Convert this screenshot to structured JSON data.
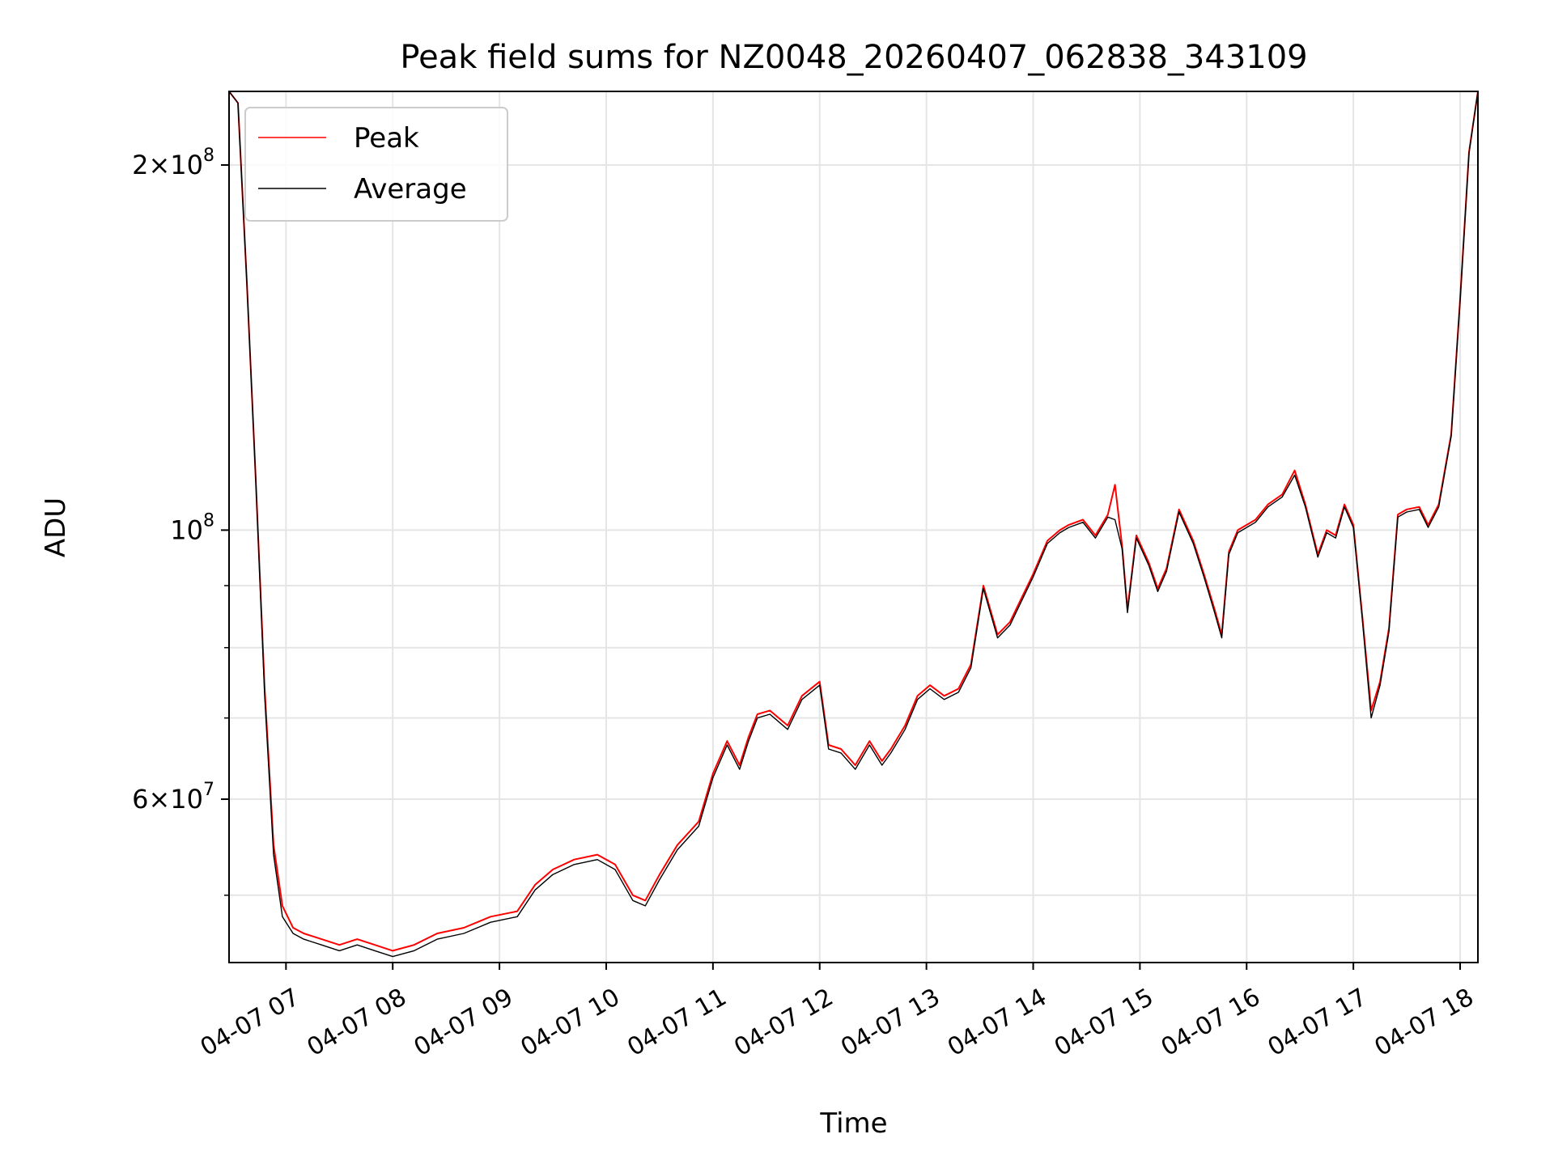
{
  "chart_data": {
    "type": "line",
    "title": "Peak field sums for NZ0048_20260407_062838_343109",
    "xlabel": "Time",
    "ylabel": "ADU",
    "y_scale": "log",
    "ylim": [
      44000000,
      230000000
    ],
    "xlim": [
      "2026-04-07T06:28",
      "2026-04-07T18:10"
    ],
    "x_ticks": [
      {
        "value": "2026-04-07T07:00",
        "label": "04-07 07"
      },
      {
        "value": "2026-04-07T08:00",
        "label": "04-07 08"
      },
      {
        "value": "2026-04-07T09:00",
        "label": "04-07 09"
      },
      {
        "value": "2026-04-07T10:00",
        "label": "04-07 10"
      },
      {
        "value": "2026-04-07T11:00",
        "label": "04-07 11"
      },
      {
        "value": "2026-04-07T12:00",
        "label": "04-07 12"
      },
      {
        "value": "2026-04-07T13:00",
        "label": "04-07 13"
      },
      {
        "value": "2026-04-07T14:00",
        "label": "04-07 14"
      },
      {
        "value": "2026-04-07T15:00",
        "label": "04-07 15"
      },
      {
        "value": "2026-04-07T16:00",
        "label": "04-07 16"
      },
      {
        "value": "2026-04-07T17:00",
        "label": "04-07 17"
      },
      {
        "value": "2026-04-07T18:00",
        "label": "04-07 18"
      }
    ],
    "y_major_ticks": [
      {
        "value": 60000000,
        "mantissa": "6",
        "exponent": "7"
      },
      {
        "value": 100000000,
        "mantissa": "",
        "exponent": "8"
      },
      {
        "value": 200000000,
        "mantissa": "2",
        "exponent": "8"
      }
    ],
    "y_minor_ticks": [
      50000000,
      70000000,
      80000000,
      90000000
    ],
    "grid": true,
    "legend_position": "upper-left",
    "series": [
      {
        "name": "Peak",
        "color": "#ff0000",
        "x": [
          "2026-04-07T06:28",
          "2026-04-07T06:33",
          "2026-04-07T06:38",
          "2026-04-07T06:43",
          "2026-04-07T06:48",
          "2026-04-07T06:53",
          "2026-04-07T06:58",
          "2026-04-07T07:04",
          "2026-04-07T07:10",
          "2026-04-07T07:20",
          "2026-04-07T07:30",
          "2026-04-07T07:40",
          "2026-04-07T07:50",
          "2026-04-07T08:00",
          "2026-04-07T08:12",
          "2026-04-07T08:25",
          "2026-04-07T08:40",
          "2026-04-07T08:55",
          "2026-04-07T09:10",
          "2026-04-07T09:20",
          "2026-04-07T09:30",
          "2026-04-07T09:42",
          "2026-04-07T09:55",
          "2026-04-07T10:05",
          "2026-04-07T10:15",
          "2026-04-07T10:22",
          "2026-04-07T10:30",
          "2026-04-07T10:40",
          "2026-04-07T10:52",
          "2026-04-07T11:00",
          "2026-04-07T11:08",
          "2026-04-07T11:15",
          "2026-04-07T11:20",
          "2026-04-07T11:25",
          "2026-04-07T11:32",
          "2026-04-07T11:42",
          "2026-04-07T11:50",
          "2026-04-07T12:00",
          "2026-04-07T12:05",
          "2026-04-07T12:12",
          "2026-04-07T12:20",
          "2026-04-07T12:28",
          "2026-04-07T12:35",
          "2026-04-07T12:40",
          "2026-04-07T12:48",
          "2026-04-07T12:55",
          "2026-04-07T13:02",
          "2026-04-07T13:10",
          "2026-04-07T13:18",
          "2026-04-07T13:25",
          "2026-04-07T13:32",
          "2026-04-07T13:40",
          "2026-04-07T13:47",
          "2026-04-07T13:52",
          "2026-04-07T14:00",
          "2026-04-07T14:08",
          "2026-04-07T14:15",
          "2026-04-07T14:20",
          "2026-04-07T14:28",
          "2026-04-07T14:35",
          "2026-04-07T14:42",
          "2026-04-07T14:46",
          "2026-04-07T14:50",
          "2026-04-07T14:53",
          "2026-04-07T14:58",
          "2026-04-07T15:05",
          "2026-04-07T15:10",
          "2026-04-07T15:15",
          "2026-04-07T15:22",
          "2026-04-07T15:30",
          "2026-04-07T15:36",
          "2026-04-07T15:42",
          "2026-04-07T15:46",
          "2026-04-07T15:50",
          "2026-04-07T15:55",
          "2026-04-07T16:05",
          "2026-04-07T16:12",
          "2026-04-07T16:20",
          "2026-04-07T16:27",
          "2026-04-07T16:33",
          "2026-04-07T16:40",
          "2026-04-07T16:45",
          "2026-04-07T16:50",
          "2026-04-07T16:55",
          "2026-04-07T17:00",
          "2026-04-07T17:05",
          "2026-04-07T17:10",
          "2026-04-07T17:15",
          "2026-04-07T17:20",
          "2026-04-07T17:25",
          "2026-04-07T17:30",
          "2026-04-07T17:37",
          "2026-04-07T17:42",
          "2026-04-07T17:48",
          "2026-04-07T17:55",
          "2026-04-07T18:00",
          "2026-04-07T18:05",
          "2026-04-07T18:10"
        ],
        "values": [
          230000000,
          225000000,
          160000000,
          110000000,
          74000000,
          55000000,
          49000000,
          47000000,
          46500000,
          46000000,
          45500000,
          46000000,
          45500000,
          45000000,
          45500000,
          46500000,
          47000000,
          48000000,
          48500000,
          51000000,
          52500000,
          53500000,
          54000000,
          53000000,
          50000000,
          49500000,
          52000000,
          55000000,
          57500000,
          63000000,
          67000000,
          64000000,
          67500000,
          70500000,
          71000000,
          69000000,
          73000000,
          75000000,
          66500000,
          66000000,
          64000000,
          67000000,
          64500000,
          66000000,
          69000000,
          73000000,
          74500000,
          73000000,
          74000000,
          77500000,
          90000000,
          82000000,
          84000000,
          87000000,
          92000000,
          98000000,
          100000000,
          101000000,
          102000000,
          99000000,
          103000000,
          109000000,
          97000000,
          86000000,
          99000000,
          94000000,
          89500000,
          93000000,
          104000000,
          98000000,
          92000000,
          86000000,
          82000000,
          96000000,
          100000000,
          102000000,
          105000000,
          107000000,
          112000000,
          105000000,
          95500000,
          100000000,
          99000000,
          105000000,
          101000000,
          85000000,
          71000000,
          75000000,
          83000000,
          103000000,
          104000000,
          104500000,
          101000000,
          105000000,
          120000000,
          155000000,
          205000000,
          230000000
        ]
      },
      {
        "name": "Average",
        "color": "#000000",
        "x": [
          "2026-04-07T06:28",
          "2026-04-07T06:33",
          "2026-04-07T06:38",
          "2026-04-07T06:43",
          "2026-04-07T06:48",
          "2026-04-07T06:53",
          "2026-04-07T06:58",
          "2026-04-07T07:04",
          "2026-04-07T07:10",
          "2026-04-07T07:20",
          "2026-04-07T07:30",
          "2026-04-07T07:40",
          "2026-04-07T07:50",
          "2026-04-07T08:00",
          "2026-04-07T08:12",
          "2026-04-07T08:25",
          "2026-04-07T08:40",
          "2026-04-07T08:55",
          "2026-04-07T09:10",
          "2026-04-07T09:20",
          "2026-04-07T09:30",
          "2026-04-07T09:42",
          "2026-04-07T09:55",
          "2026-04-07T10:05",
          "2026-04-07T10:15",
          "2026-04-07T10:22",
          "2026-04-07T10:30",
          "2026-04-07T10:40",
          "2026-04-07T10:52",
          "2026-04-07T11:00",
          "2026-04-07T11:08",
          "2026-04-07T11:15",
          "2026-04-07T11:20",
          "2026-04-07T11:25",
          "2026-04-07T11:32",
          "2026-04-07T11:42",
          "2026-04-07T11:50",
          "2026-04-07T12:00",
          "2026-04-07T12:05",
          "2026-04-07T12:12",
          "2026-04-07T12:20",
          "2026-04-07T12:28",
          "2026-04-07T12:35",
          "2026-04-07T12:40",
          "2026-04-07T12:48",
          "2026-04-07T12:55",
          "2026-04-07T13:02",
          "2026-04-07T13:10",
          "2026-04-07T13:18",
          "2026-04-07T13:25",
          "2026-04-07T13:32",
          "2026-04-07T13:40",
          "2026-04-07T13:47",
          "2026-04-07T13:52",
          "2026-04-07T14:00",
          "2026-04-07T14:08",
          "2026-04-07T14:15",
          "2026-04-07T14:20",
          "2026-04-07T14:28",
          "2026-04-07T14:35",
          "2026-04-07T14:42",
          "2026-04-07T14:46",
          "2026-04-07T14:50",
          "2026-04-07T14:53",
          "2026-04-07T14:58",
          "2026-04-07T15:05",
          "2026-04-07T15:10",
          "2026-04-07T15:15",
          "2026-04-07T15:22",
          "2026-04-07T15:30",
          "2026-04-07T15:36",
          "2026-04-07T15:42",
          "2026-04-07T15:46",
          "2026-04-07T15:50",
          "2026-04-07T15:55",
          "2026-04-07T16:05",
          "2026-04-07T16:12",
          "2026-04-07T16:20",
          "2026-04-07T16:27",
          "2026-04-07T16:33",
          "2026-04-07T16:40",
          "2026-04-07T16:45",
          "2026-04-07T16:50",
          "2026-04-07T16:55",
          "2026-04-07T17:00",
          "2026-04-07T17:05",
          "2026-04-07T17:10",
          "2026-04-07T17:15",
          "2026-04-07T17:20",
          "2026-04-07T17:25",
          "2026-04-07T17:30",
          "2026-04-07T17:37",
          "2026-04-07T17:42",
          "2026-04-07T17:48",
          "2026-04-07T17:55",
          "2026-04-07T18:00",
          "2026-04-07T18:05",
          "2026-04-07T18:10"
        ],
        "values": [
          230000000,
          225000000,
          160000000,
          110000000,
          73000000,
          54000000,
          48000000,
          46500000,
          46000000,
          45500000,
          45000000,
          45500000,
          45000000,
          44500000,
          45000000,
          46000000,
          46500000,
          47500000,
          48000000,
          50500000,
          52000000,
          53000000,
          53500000,
          52500000,
          49500000,
          49000000,
          51500000,
          54500000,
          57000000,
          62500000,
          66500000,
          63500000,
          67000000,
          70000000,
          70500000,
          68500000,
          72500000,
          74500000,
          66000000,
          65500000,
          63500000,
          66500000,
          64000000,
          65500000,
          68500000,
          72500000,
          74000000,
          72500000,
          73500000,
          77000000,
          89500000,
          81500000,
          83500000,
          86500000,
          91500000,
          97500000,
          99500000,
          100500000,
          101500000,
          98500000,
          102500000,
          102000000,
          96500000,
          85500000,
          98500000,
          93500000,
          89000000,
          92500000,
          103500000,
          97500000,
          91500000,
          85500000,
          81500000,
          95500000,
          99500000,
          101500000,
          104500000,
          106500000,
          111000000,
          104500000,
          95000000,
          99500000,
          98500000,
          104500000,
          100500000,
          84500000,
          70000000,
          74500000,
          82500000,
          102500000,
          103500000,
          104000000,
          100500000,
          104500000,
          119500000,
          154500000,
          204500000,
          230000000
        ]
      }
    ]
  }
}
